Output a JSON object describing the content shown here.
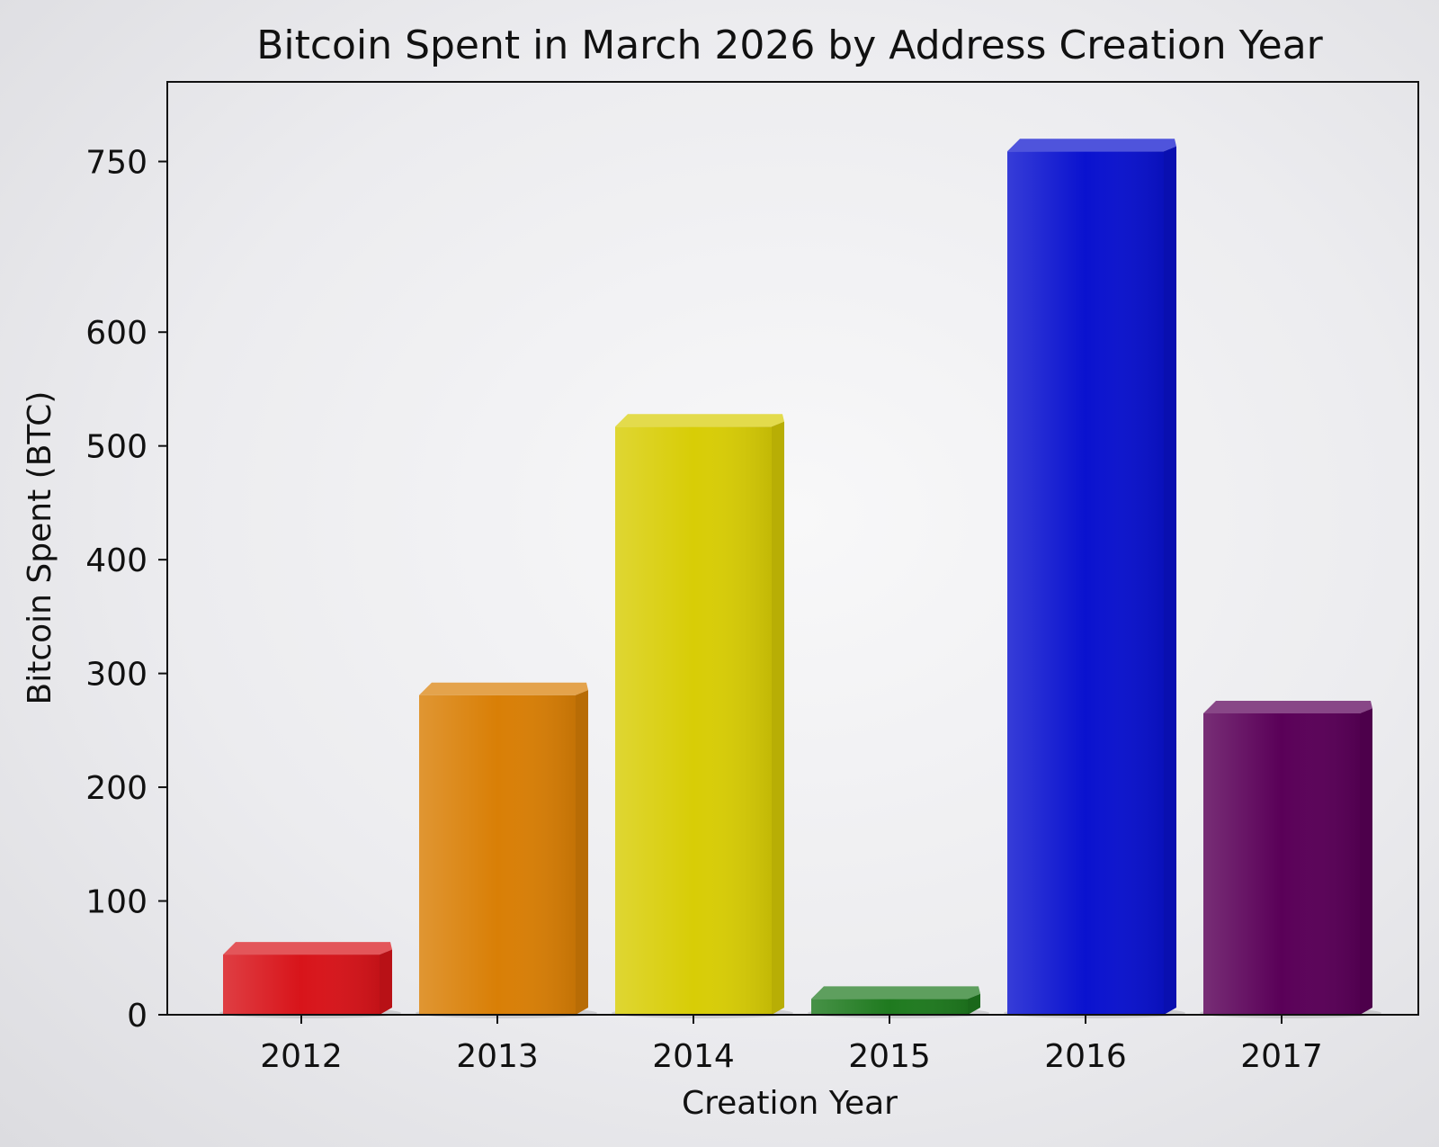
{
  "chart_data": {
    "type": "bar",
    "title": "Bitcoin Spent in March 2026 by Address Creation Year",
    "xlabel": "Creation Year",
    "ylabel": "Bitcoin Spent (BTC)",
    "categories": [
      "2012",
      "2013",
      "2014",
      "2015",
      "2016",
      "2017"
    ],
    "values": [
      64,
      292,
      528,
      25,
      770,
      276
    ],
    "colors": [
      "#d8141a",
      "#d97f06",
      "#d8cd06",
      "#1f7a1f",
      "#0a12cf",
      "#5a0058"
    ],
    "ylim": [
      0,
      820
    ],
    "yticks": [
      0,
      100,
      200,
      300,
      400,
      500,
      600,
      750
    ],
    "grid": false,
    "legend": "none"
  }
}
